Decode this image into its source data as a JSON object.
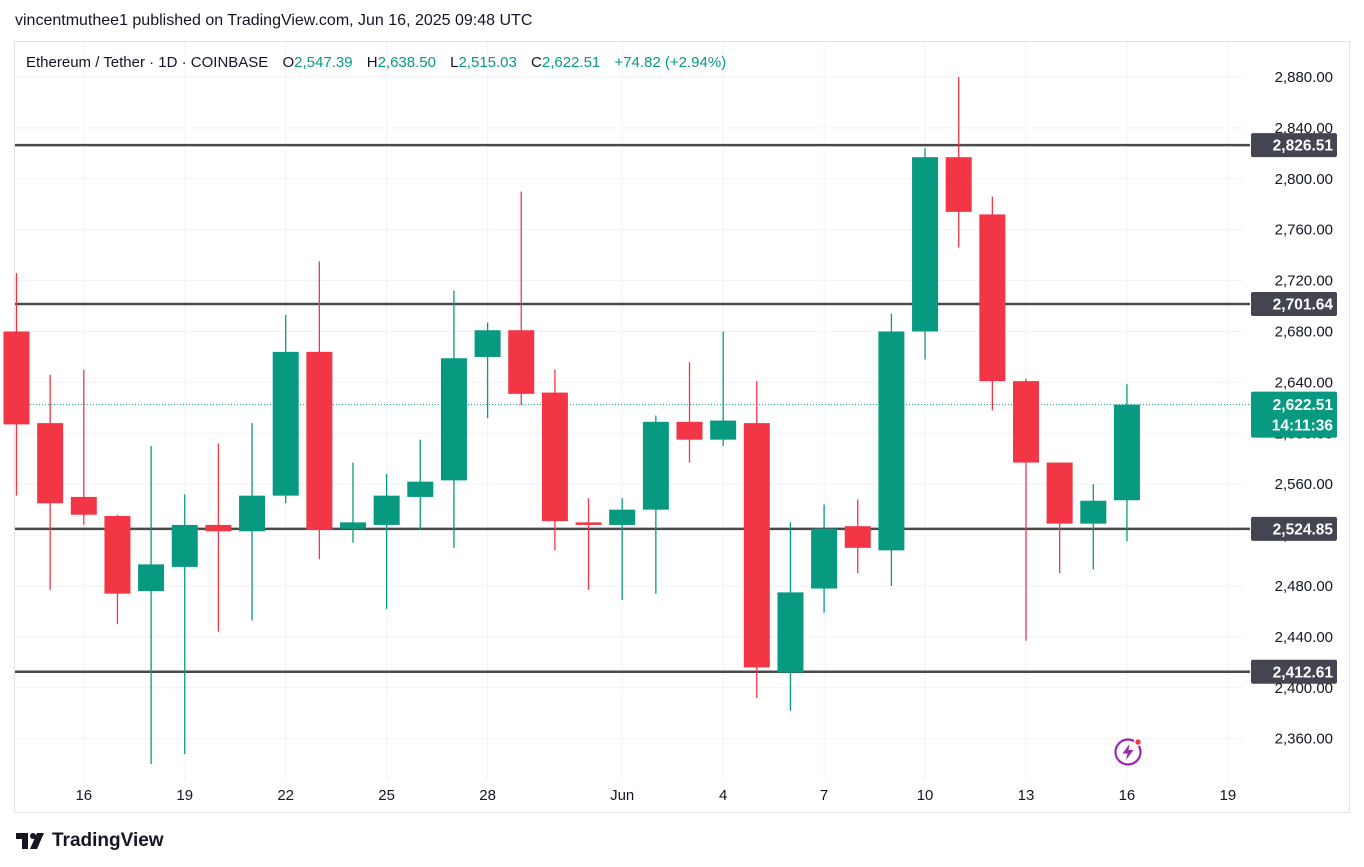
{
  "header": {
    "publisher_line": "vincentmuthee1 published on TradingView.com, Jun 16, 2025 09:48 UTC"
  },
  "legend": {
    "symbol": "Ethereum / Tether · 1D · COINBASE",
    "open_label": "O",
    "open": "2,547.39",
    "high_label": "H",
    "high": "2,638.50",
    "low_label": "L",
    "low": "2,515.03",
    "close_label": "C",
    "close": "2,622.51",
    "change": "+74.82 (+2.94%)"
  },
  "footer": {
    "brand": "TradingView"
  },
  "colors": {
    "up": "#089981",
    "down": "#f23645",
    "level_line": "#4a4a4a",
    "level_label_bg": "#434651",
    "price_label_bg": "#089981",
    "grid": "#f0f3fa",
    "axis_text": "#131722",
    "bolt_icon": "#9c27b0"
  },
  "icons": {
    "bolt": "lightning-bolt-icon"
  },
  "chart_data": {
    "type": "candlestick",
    "title": "Ethereum / Tether · 1D · COINBASE",
    "y_ticks": [
      2360,
      2400,
      2440,
      2480,
      2520,
      2560,
      2600,
      2640,
      2680,
      2720,
      2760,
      2800,
      2840,
      2880
    ],
    "y_tick_labels": [
      "2,360.00",
      "2,400.00",
      "2,440.00",
      "2,480.00",
      "2,520.00",
      "2,560.00",
      "2,600.00",
      "2,640.00",
      "2,680.00",
      "2,720.00",
      "2,760.00",
      "2,800.00",
      "2,840.00",
      "2,880.00"
    ],
    "x_ticks": [
      {
        "label": "16",
        "day_index": 2
      },
      {
        "label": "19",
        "day_index": 5
      },
      {
        "label": "22",
        "day_index": 8
      },
      {
        "label": "25",
        "day_index": 11
      },
      {
        "label": "28",
        "day_index": 14
      },
      {
        "label": "Jun",
        "day_index": 18
      },
      {
        "label": "4",
        "day_index": 21
      },
      {
        "label": "7",
        "day_index": 24
      },
      {
        "label": "10",
        "day_index": 27
      },
      {
        "label": "13",
        "day_index": 30
      },
      {
        "label": "16",
        "day_index": 33
      },
      {
        "label": "19",
        "day_index": 36
      }
    ],
    "grid": true,
    "candles": [
      {
        "o": 2680,
        "h": 2726,
        "l": 2551,
        "c": 2607
      },
      {
        "o": 2608,
        "h": 2646,
        "l": 2477,
        "c": 2545
      },
      {
        "o": 2550,
        "h": 2650,
        "l": 2528,
        "c": 2536
      },
      {
        "o": 2535,
        "h": 2536,
        "l": 2450,
        "c": 2474
      },
      {
        "o": 2476,
        "h": 2590,
        "l": 2340,
        "c": 2497
      },
      {
        "o": 2495,
        "h": 2552,
        "l": 2348,
        "c": 2528
      },
      {
        "o": 2528,
        "h": 2592,
        "l": 2444,
        "c": 2523
      },
      {
        "o": 2523,
        "h": 2608,
        "l": 2453,
        "c": 2551
      },
      {
        "o": 2551,
        "h": 2693,
        "l": 2545,
        "c": 2664
      },
      {
        "o": 2664,
        "h": 2735,
        "l": 2501,
        "c": 2524
      },
      {
        "o": 2525,
        "h": 2577,
        "l": 2514,
        "c": 2530
      },
      {
        "o": 2528,
        "h": 2568,
        "l": 2462,
        "c": 2551
      },
      {
        "o": 2550,
        "h": 2595,
        "l": 2524,
        "c": 2562
      },
      {
        "o": 2563,
        "h": 2712,
        "l": 2510,
        "c": 2659
      },
      {
        "o": 2660,
        "h": 2687,
        "l": 2612,
        "c": 2681
      },
      {
        "o": 2681,
        "h": 2790,
        "l": 2622,
        "c": 2631
      },
      {
        "o": 2632,
        "h": 2650,
        "l": 2508,
        "c": 2531
      },
      {
        "o": 2530,
        "h": 2549,
        "l": 2477,
        "c": 2528
      },
      {
        "o": 2528,
        "h": 2549,
        "l": 2469,
        "c": 2540
      },
      {
        "o": 2540,
        "h": 2614,
        "l": 2474,
        "c": 2609
      },
      {
        "o": 2609,
        "h": 2656,
        "l": 2577,
        "c": 2595
      },
      {
        "o": 2595,
        "h": 2680,
        "l": 2590,
        "c": 2610
      },
      {
        "o": 2608,
        "h": 2641,
        "l": 2392,
        "c": 2416
      },
      {
        "o": 2412,
        "h": 2530,
        "l": 2382,
        "c": 2475
      },
      {
        "o": 2478,
        "h": 2544,
        "l": 2459,
        "c": 2525
      },
      {
        "o": 2527,
        "h": 2548,
        "l": 2490,
        "c": 2510
      },
      {
        "o": 2508,
        "h": 2694,
        "l": 2480,
        "c": 2680
      },
      {
        "o": 2680,
        "h": 2824,
        "l": 2658,
        "c": 2817
      },
      {
        "o": 2817,
        "h": 2880,
        "l": 2746,
        "c": 2774
      },
      {
        "o": 2772,
        "h": 2786,
        "l": 2618,
        "c": 2641
      },
      {
        "o": 2641,
        "h": 2643,
        "l": 2437,
        "c": 2577
      },
      {
        "o": 2577,
        "h": 2577,
        "l": 2490,
        "c": 2529
      },
      {
        "o": 2529,
        "h": 2560,
        "l": 2493,
        "c": 2547
      },
      {
        "o": 2547.39,
        "h": 2638.5,
        "l": 2515.03,
        "c": 2622.51
      }
    ],
    "levels": [
      {
        "value": 2826.51,
        "label": "2,826.51"
      },
      {
        "value": 2701.64,
        "label": "2,701.64"
      },
      {
        "value": 2524.85,
        "label": "2,524.85"
      },
      {
        "value": 2412.61,
        "label": "2,412.61"
      }
    ],
    "last_price": {
      "value": 2622.51,
      "label": "2,622.51",
      "countdown": "14:11:36"
    }
  }
}
